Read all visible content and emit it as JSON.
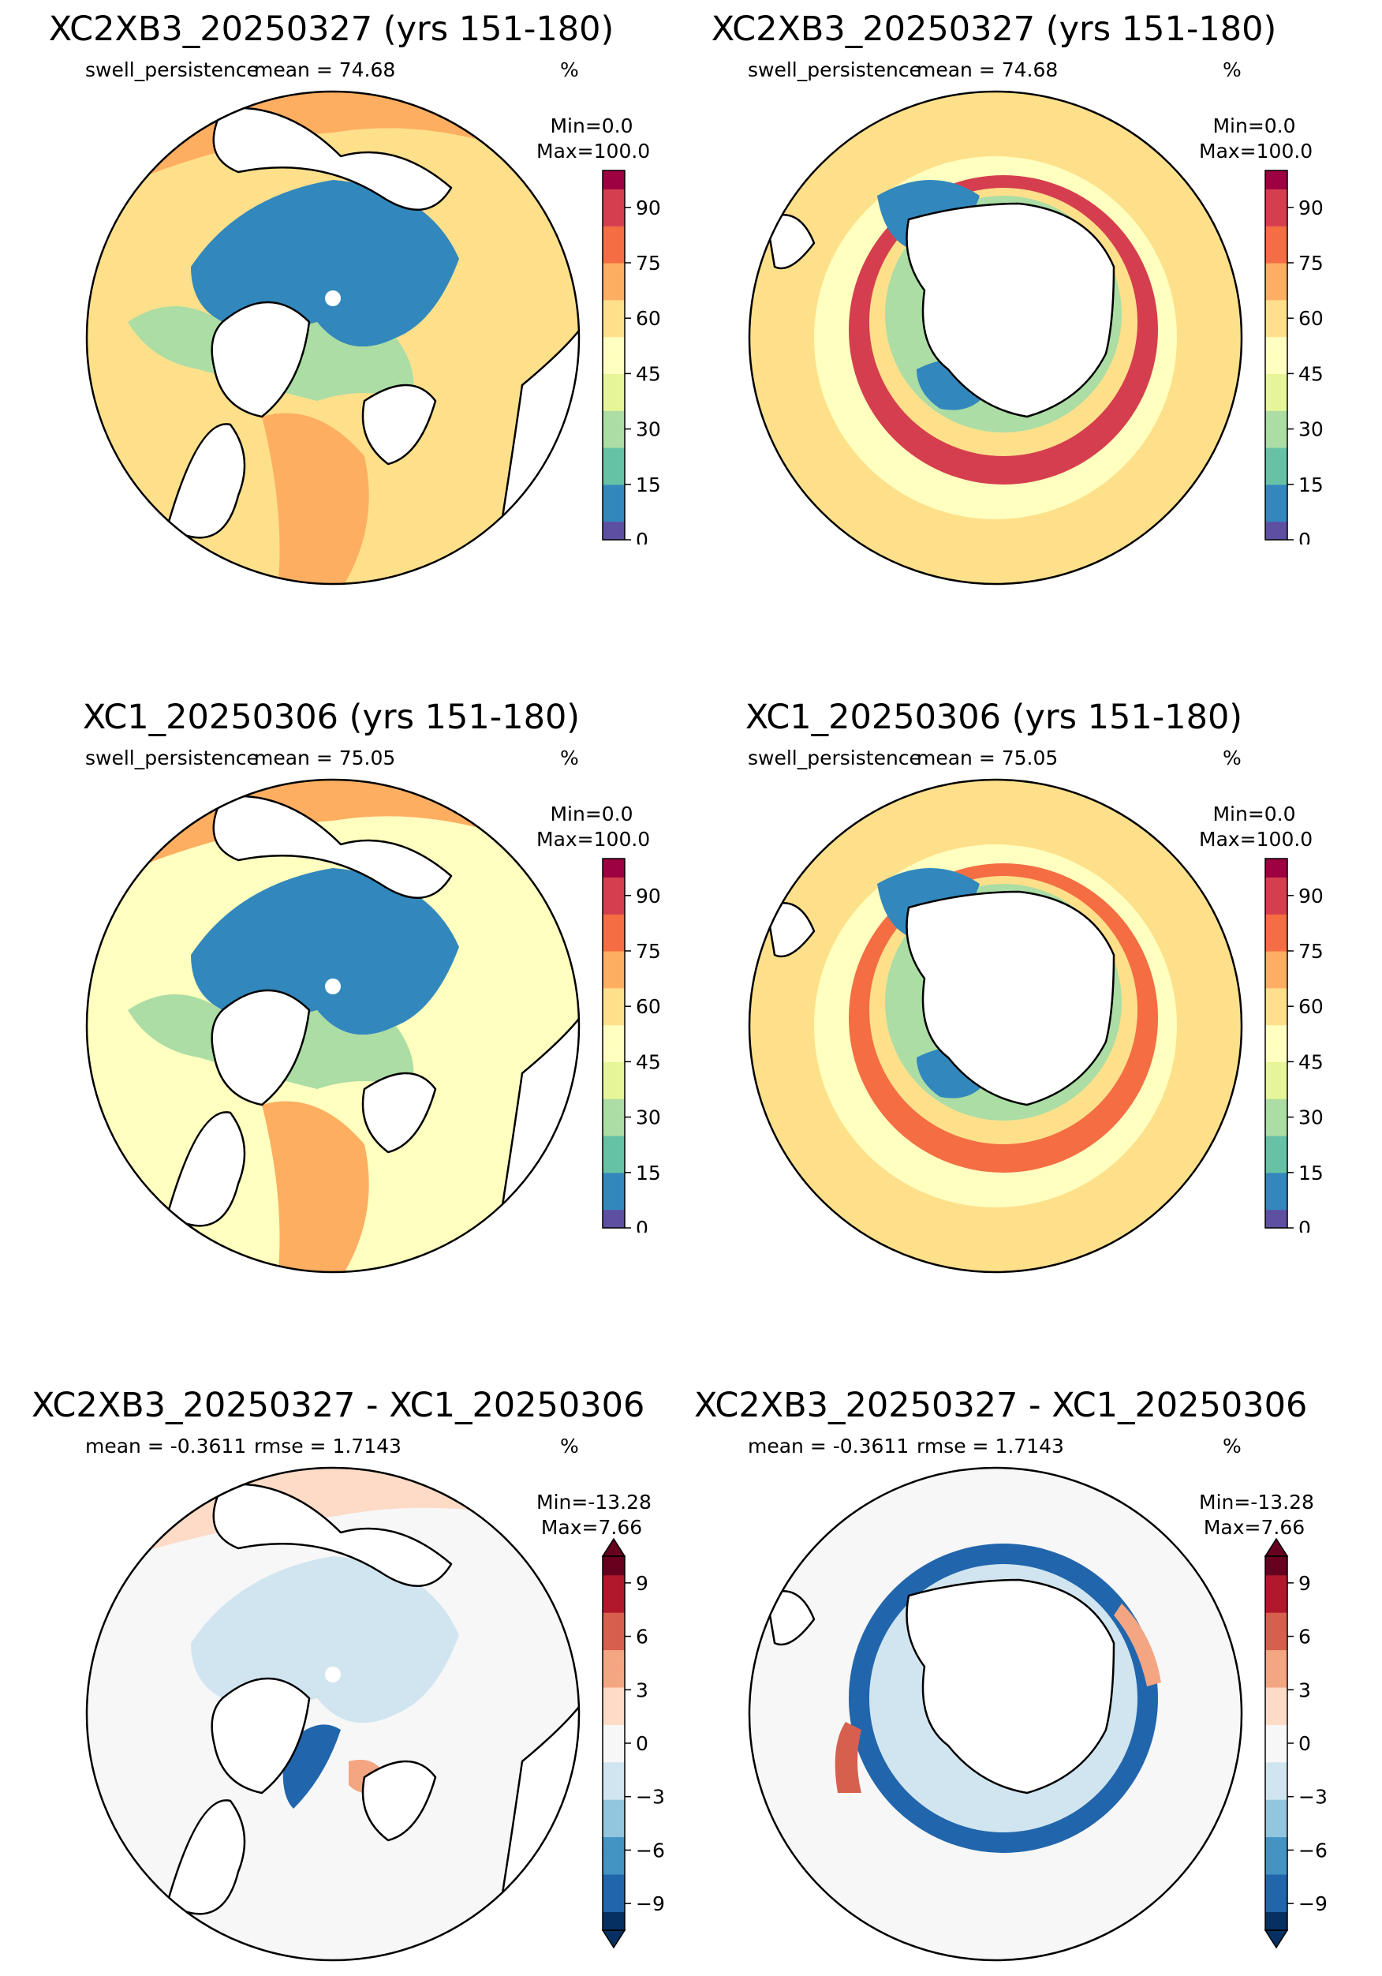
{
  "panels": [
    {
      "id": "p1",
      "hemisphere": "north",
      "palette": "spectral",
      "title": "XC2XB3_20250327 (yrs 151-180)",
      "left_label": "swell_persistence",
      "center_label": "mean = 74.68",
      "units": "%",
      "min_label": "Min=0.0",
      "max_label": "Max=100.0",
      "colorbar": {
        "range": [
          0,
          100
        ],
        "ticks": [
          "0",
          "15",
          "30",
          "45",
          "60",
          "75",
          "90"
        ],
        "tick_values": [
          0,
          15,
          30,
          45,
          60,
          75,
          90
        ],
        "extend": "neither"
      }
    },
    {
      "id": "p2",
      "hemisphere": "south",
      "palette": "spectral",
      "title": "XC2XB3_20250327 (yrs 151-180)",
      "left_label": "swell_persistence",
      "center_label": "mean = 74.68",
      "units": "%",
      "min_label": "Min=0.0",
      "max_label": "Max=100.0",
      "colorbar": {
        "range": [
          0,
          100
        ],
        "ticks": [
          "0",
          "15",
          "30",
          "45",
          "60",
          "75",
          "90"
        ],
        "tick_values": [
          0,
          15,
          30,
          45,
          60,
          75,
          90
        ],
        "extend": "neither"
      }
    },
    {
      "id": "p3",
      "hemisphere": "north",
      "palette": "spectral",
      "title": "XC1_20250306 (yrs 151-180)",
      "left_label": "swell_persistence",
      "center_label": "mean = 75.05",
      "units": "%",
      "min_label": "Min=0.0",
      "max_label": "Max=100.0",
      "colorbar": {
        "range": [
          0,
          100
        ],
        "ticks": [
          "0",
          "15",
          "30",
          "45",
          "60",
          "75",
          "90"
        ],
        "tick_values": [
          0,
          15,
          30,
          45,
          60,
          75,
          90
        ],
        "extend": "neither"
      }
    },
    {
      "id": "p4",
      "hemisphere": "south",
      "palette": "spectral",
      "title": "XC1_20250306 (yrs 151-180)",
      "left_label": "swell_persistence",
      "center_label": "mean = 75.05",
      "units": "%",
      "min_label": "Min=0.0",
      "max_label": "Max=100.0",
      "colorbar": {
        "range": [
          0,
          100
        ],
        "ticks": [
          "0",
          "15",
          "30",
          "45",
          "60",
          "75",
          "90"
        ],
        "tick_values": [
          0,
          15,
          30,
          45,
          60,
          75,
          90
        ],
        "extend": "neither"
      }
    },
    {
      "id": "p5",
      "hemisphere": "north",
      "palette": "diverging",
      "title": "XC2XB3_20250327 - XC1_20250306",
      "left_label": "mean = -0.3611",
      "center_label": "rmse = 1.7143",
      "units": "%",
      "min_label": "Min=-13.28",
      "max_label": "Max=7.66",
      "colorbar": {
        "range": [
          -10.5,
          10.5
        ],
        "ticks": [
          "−9",
          "−6",
          "−3",
          "0",
          "3",
          "6",
          "9"
        ],
        "tick_values": [
          -9,
          -6,
          -3,
          0,
          3,
          6,
          9
        ],
        "extend": "both"
      }
    },
    {
      "id": "p6",
      "hemisphere": "south",
      "palette": "diverging",
      "title": "XC2XB3_20250327 - XC1_20250306",
      "left_label": "mean = -0.3611",
      "center_label": "rmse = 1.7143",
      "units": "%",
      "min_label": "Min=-13.28",
      "max_label": "Max=7.66",
      "colorbar": {
        "range": [
          -10.5,
          10.5
        ],
        "ticks": [
          "−9",
          "−6",
          "−3",
          "0",
          "3",
          "6",
          "9"
        ],
        "tick_values": [
          -9,
          -6,
          -3,
          0,
          3,
          6,
          9
        ],
        "extend": "both"
      }
    }
  ],
  "colors": {
    "spectral": [
      "#5e4fa2",
      "#3288bd",
      "#66c2a5",
      "#abdda4",
      "#e6f598",
      "#ffffbf",
      "#fee08b",
      "#fdae61",
      "#f46d43",
      "#d53e4f",
      "#9e0142"
    ],
    "diverging": [
      "#053061",
      "#2166ac",
      "#4393c3",
      "#92c5de",
      "#d1e5f0",
      "#f7f7f7",
      "#fddbc7",
      "#f4a582",
      "#d6604d",
      "#b2182b",
      "#67001f"
    ],
    "land": "#ffffff",
    "coast": "#000000"
  }
}
